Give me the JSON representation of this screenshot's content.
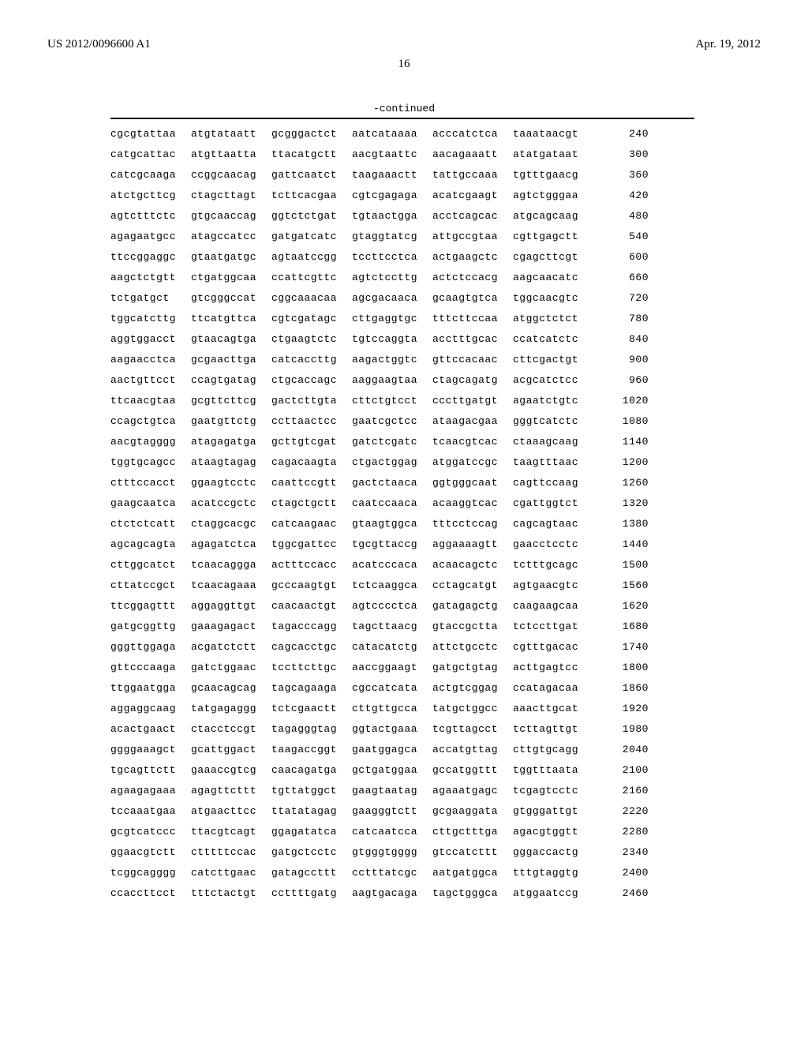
{
  "header": {
    "pub_number": "US 2012/0096600 A1",
    "pub_date": "Apr. 19, 2012"
  },
  "page_number": "16",
  "continued_label": "-continued",
  "sequence": {
    "rows": [
      {
        "blocks": [
          "cgcgtattaa",
          "atgtataatt",
          "gcgggactct",
          "aatcataaaa",
          "acccatctca",
          "taaataacgt"
        ],
        "pos": 240
      },
      {
        "blocks": [
          "catgcattac",
          "atgttaatta",
          "ttacatgctt",
          "aacgtaattc",
          "aacagaaatt",
          "atatgataat"
        ],
        "pos": 300
      },
      {
        "blocks": [
          "catcgcaaga",
          "ccggcaacag",
          "gattcaatct",
          "taagaaactt",
          "tattgccaaa",
          "tgtttgaacg"
        ],
        "pos": 360
      },
      {
        "blocks": [
          "atctgcttcg",
          "ctagcttagt",
          "tcttcacgaa",
          "cgtcgagaga",
          "acatcgaagt",
          "agtctgggaa"
        ],
        "pos": 420
      },
      {
        "blocks": [
          "agtctttctc",
          "gtgcaaccag",
          "ggtctctgat",
          "tgtaactgga",
          "acctcagcac",
          "atgcagcaag"
        ],
        "pos": 480
      },
      {
        "blocks": [
          "agagaatgcc",
          "atagccatcc",
          "gatgatcatc",
          "gtaggtatcg",
          "attgccgtaa",
          "cgttgagctt"
        ],
        "pos": 540
      },
      {
        "blocks": [
          "ttccggaggc",
          "gtaatgatgc",
          "agtaatccgg",
          "tccttcctca",
          "actgaagctc",
          "cgagcttcgt"
        ],
        "pos": 600
      },
      {
        "blocks": [
          "aagctctgtt",
          "ctgatggcaa",
          "ccattcgttc",
          "agtctccttg",
          "actctccacg",
          "aagcaacatc"
        ],
        "pos": 660
      },
      {
        "blocks": [
          "tctgatgct",
          "gtcgggccat",
          "cggcaaacaa",
          "agcgacaaca",
          "gcaagtgtca",
          "tggcaacgtc"
        ],
        "pos": 720
      },
      {
        "blocks": [
          "tggcatcttg",
          "ttcatgttca",
          "cgtcgatagc",
          "cttgaggtgc",
          "tttcttccaa",
          "atggctctct"
        ],
        "pos": 780
      },
      {
        "blocks": [
          "aggtggacct",
          "gtaacagtga",
          "ctgaagtctc",
          "tgtccaggta",
          "acctttgcac",
          "ccatcatctc"
        ],
        "pos": 840
      },
      {
        "blocks": [
          "aagaacctca",
          "gcgaacttga",
          "catcaccttg",
          "aagactggtc",
          "gttccacaac",
          "cttcgactgt"
        ],
        "pos": 900
      },
      {
        "blocks": [
          "aactgttcct",
          "ccagtgatag",
          "ctgcaccagc",
          "aaggaagtaa",
          "ctagcagatg",
          "acgcatctcc"
        ],
        "pos": 960
      },
      {
        "blocks": [
          "ttcaacgtaa",
          "gcgttcttcg",
          "gactcttgta",
          "cttctgtcct",
          "cccttgatgt",
          "agaatctgtc"
        ],
        "pos": 1020
      },
      {
        "blocks": [
          "ccagctgtca",
          "gaatgttctg",
          "ccttaactcc",
          "gaatcgctcc",
          "ataagacgaa",
          "gggtcatctc"
        ],
        "pos": 1080
      },
      {
        "blocks": [
          "aacgtagggg",
          "atagagatga",
          "gcttgtcgat",
          "gatctcgatc",
          "tcaacgtcac",
          "ctaaagcaag"
        ],
        "pos": 1140
      },
      {
        "blocks": [
          "tggtgcagcc",
          "ataagtagag",
          "cagacaagta",
          "ctgactggag",
          "atggatccgc",
          "taagtttaac"
        ],
        "pos": 1200
      },
      {
        "blocks": [
          "ctttccacct",
          "ggaagtcctc",
          "caattccgtt",
          "gactctaaca",
          "ggtgggcaat",
          "cagttccaag"
        ],
        "pos": 1260
      },
      {
        "blocks": [
          "gaagcaatca",
          "acatccgctc",
          "ctagctgctt",
          "caatccaaca",
          "acaaggtcac",
          "cgattggtct"
        ],
        "pos": 1320
      },
      {
        "blocks": [
          "ctctctcatt",
          "ctaggcacgc",
          "catcaagaac",
          "gtaagtggca",
          "tttcctccag",
          "cagcagtaac"
        ],
        "pos": 1380
      },
      {
        "blocks": [
          "agcagcagta",
          "agagatctca",
          "tggcgattcc",
          "tgcgttaccg",
          "aggaaaagtt",
          "gaacctcctc"
        ],
        "pos": 1440
      },
      {
        "blocks": [
          "cttggcatct",
          "tcaacaggga",
          "actttccacc",
          "acatcccaca",
          "acaacagctc",
          "tctttgcagc"
        ],
        "pos": 1500
      },
      {
        "blocks": [
          "cttatccgct",
          "tcaacagaaa",
          "gcccaagtgt",
          "tctcaaggca",
          "cctagcatgt",
          "agtgaacgtc"
        ],
        "pos": 1560
      },
      {
        "blocks": [
          "ttcggagttt",
          "aggaggttgt",
          "caacaactgt",
          "agtcccctca",
          "gatagagctg",
          "caagaagcaa"
        ],
        "pos": 1620
      },
      {
        "blocks": [
          "gatgcggttg",
          "gaaagagact",
          "tagacccagg",
          "tagcttaacg",
          "gtaccgctta",
          "tctccttgat"
        ],
        "pos": 1680
      },
      {
        "blocks": [
          "gggttggaga",
          "acgatctctt",
          "cagcacctgc",
          "catacatctg",
          "attctgcctc",
          "cgtttgacac"
        ],
        "pos": 1740
      },
      {
        "blocks": [
          "gttcccaaga",
          "gatctggaac",
          "tccttcttgc",
          "aaccggaagt",
          "gatgctgtag",
          "acttgagtcc"
        ],
        "pos": 1800
      },
      {
        "blocks": [
          "ttggaatgga",
          "gcaacagcag",
          "tagcagaaga",
          "cgccatcata",
          "actgtcggag",
          "ccatagacaa"
        ],
        "pos": 1860
      },
      {
        "blocks": [
          "aggaggcaag",
          "tatgagaggg",
          "tctcgaactt",
          "cttgttgcca",
          "tatgctggcc",
          "aaacttgcat"
        ],
        "pos": 1920
      },
      {
        "blocks": [
          "acactgaact",
          "ctacctccgt",
          "tagagggtag",
          "ggtactgaaa",
          "tcgttagcct",
          "tcttagttgt"
        ],
        "pos": 1980
      },
      {
        "blocks": [
          "ggggaaagct",
          "gcattggact",
          "taagaccggt",
          "gaatggagca",
          "accatgttag",
          "cttgtgcagg"
        ],
        "pos": 2040
      },
      {
        "blocks": [
          "tgcagttctt",
          "gaaaccgtcg",
          "caacagatga",
          "gctgatggaa",
          "gccatggttt",
          "tggtttaata"
        ],
        "pos": 2100
      },
      {
        "blocks": [
          "agaagagaaa",
          "agagttcttt",
          "tgttatggct",
          "gaagtaatag",
          "agaaatgagc",
          "tcgagtcctc"
        ],
        "pos": 2160
      },
      {
        "blocks": [
          "tccaaatgaa",
          "atgaacttcc",
          "ttatatagag",
          "gaagggtctt",
          "gcgaaggata",
          "gtgggattgt"
        ],
        "pos": 2220
      },
      {
        "blocks": [
          "gcgtcatccc",
          "ttacgtcagt",
          "ggagatatca",
          "catcaatcca",
          "cttgctttga",
          "agacgtggtt"
        ],
        "pos": 2280
      },
      {
        "blocks": [
          "ggaacgtctt",
          "ctttttccac",
          "gatgctcctc",
          "gtgggtgggg",
          "gtccatcttt",
          "gggaccactg"
        ],
        "pos": 2340
      },
      {
        "blocks": [
          "tcggcagggg",
          "catcttgaac",
          "gatagccttt",
          "cctttatcgc",
          "aatgatggca",
          "tttgtaggtg"
        ],
        "pos": 2400
      },
      {
        "blocks": [
          "ccaccttcct",
          "tttctactgt",
          "ccttttgatg",
          "aagtgacaga",
          "tagctgggca",
          "atggaatccg"
        ],
        "pos": 2460
      }
    ]
  }
}
